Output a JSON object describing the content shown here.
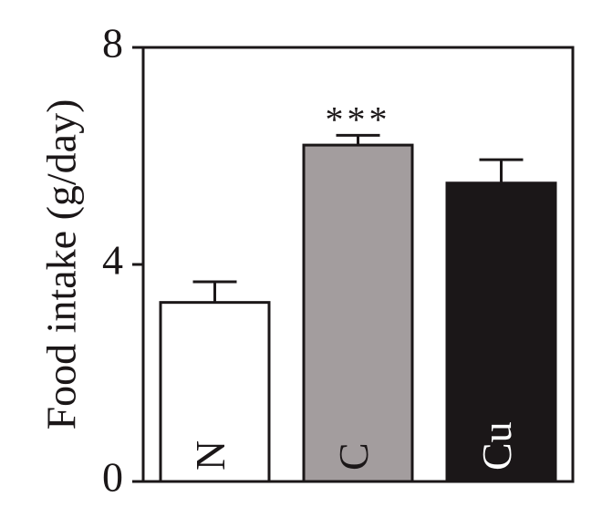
{
  "chart_data": {
    "type": "bar",
    "ylabel": "Food intake (g/day)",
    "categories": [
      "N",
      "C",
      "Cu"
    ],
    "values": [
      3.3,
      6.2,
      5.5
    ],
    "errors": [
      0.38,
      0.18,
      0.43
    ],
    "colors": [
      "#ffffff",
      "#a39d9e",
      "#1b1718"
    ],
    "label_colors": [
      "#1b1718",
      "#1b1718",
      "#ffffff"
    ],
    "annotations": [
      {
        "text": "***",
        "x": "C"
      }
    ],
    "ylim": [
      0,
      8
    ],
    "yticks": [
      0,
      4,
      8
    ],
    "grid": false
  }
}
